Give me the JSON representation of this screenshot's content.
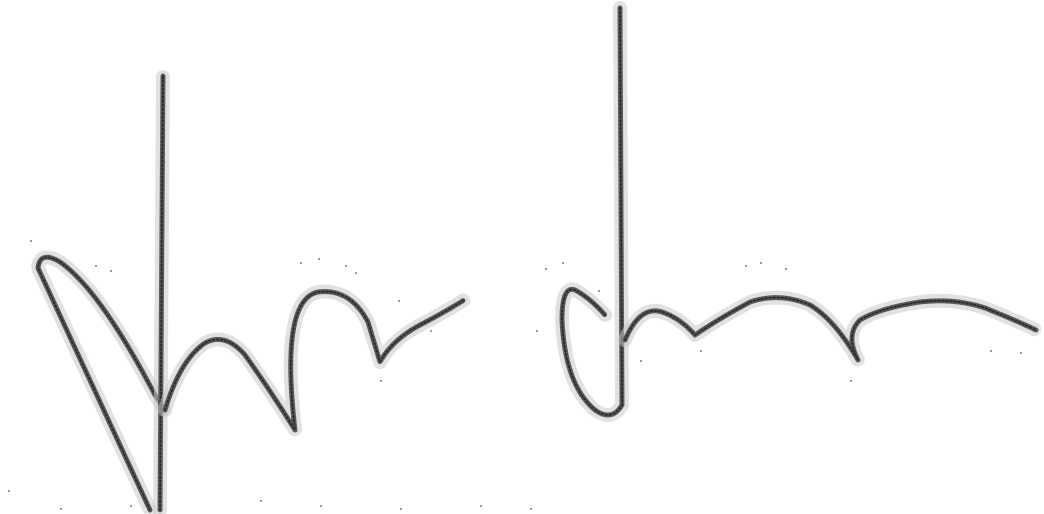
{
  "image": {
    "background_color": "#ffffff",
    "ink_color": "#3a3a3a",
    "description_kind": "scribble-strokes"
  },
  "strokes": [
    {
      "name": "left-loop-stroke"
    },
    {
      "name": "left-vertical-stroke"
    },
    {
      "name": "left-wave-stroke"
    },
    {
      "name": "right-vertical-stroke"
    },
    {
      "name": "right-wave-stroke"
    }
  ]
}
